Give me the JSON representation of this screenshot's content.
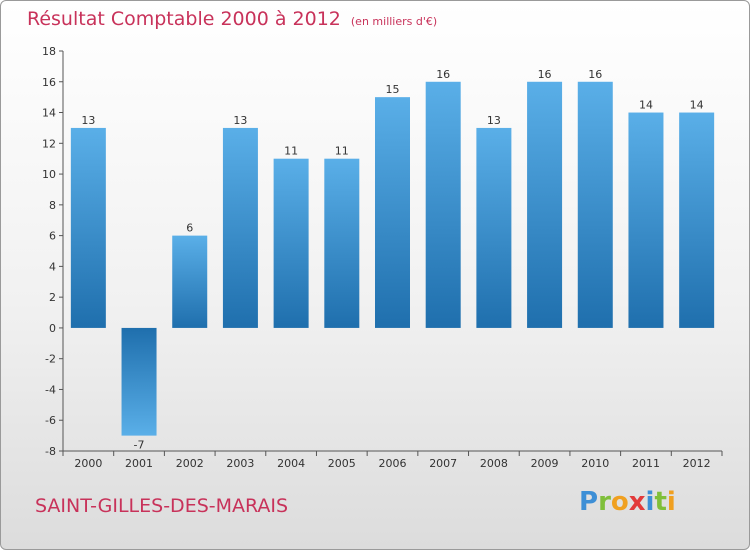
{
  "chart_data": {
    "type": "bar",
    "title": "Résultat Comptable 2000 à 2012",
    "unit_label": "(en milliers d'€)",
    "categories": [
      "2000",
      "2001",
      "2002",
      "2003",
      "2004",
      "2005",
      "2006",
      "2007",
      "2008",
      "2009",
      "2010",
      "2011",
      "2012"
    ],
    "values": [
      13,
      -7,
      6,
      13,
      11,
      11,
      15,
      16,
      13,
      16,
      16,
      14,
      14
    ],
    "data_labels": [
      "13",
      "-7",
      "6",
      "13",
      "11",
      "11",
      "15",
      "16",
      "13",
      "16",
      "16",
      "14",
      "14"
    ],
    "ylim": [
      -8,
      18
    ],
    "yticks": [
      -8,
      -6,
      -4,
      -2,
      0,
      2,
      4,
      6,
      8,
      10,
      12,
      14,
      16,
      18
    ],
    "ytick_labels": [
      "-8",
      "-6",
      "-4",
      "-2",
      "0",
      "2",
      "4",
      "6",
      "8",
      "10",
      "12",
      "14",
      "16",
      "18"
    ],
    "xlabel": "",
    "ylabel": "",
    "grid": false,
    "colors": {
      "bar_light": "#5aafe8",
      "bar_dark": "#1f6fad",
      "axis": "#555555",
      "text": "#333333"
    }
  },
  "footer": {
    "commune": "SAINT-GILLES-DES-MARAIS",
    "logo_letters": [
      {
        "ch": "P",
        "color": "#3d8fd6"
      },
      {
        "ch": "r",
        "color": "#7fbf3a"
      },
      {
        "ch": "o",
        "color": "#f0a020"
      },
      {
        "ch": "x",
        "color": "#e23a3a"
      },
      {
        "ch": "i",
        "color": "#3d8fd6"
      },
      {
        "ch": "t",
        "color": "#7fbf3a"
      },
      {
        "ch": "i",
        "color": "#f0a020"
      }
    ]
  },
  "theme": {
    "title_color": "#c8325a"
  }
}
